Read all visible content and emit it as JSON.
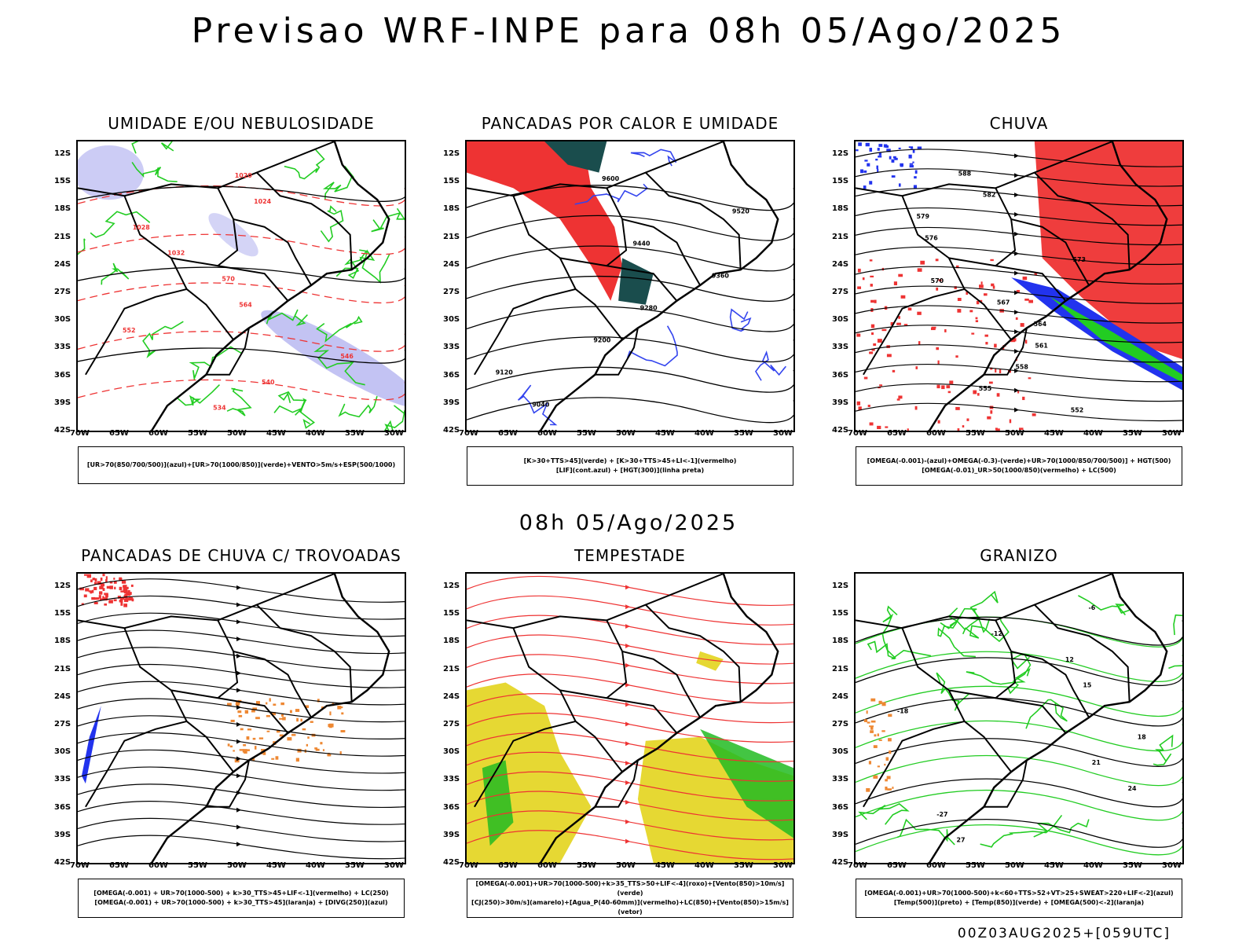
{
  "main_title": "Previsao WRF-INPE  para 08h 05/Ago/2025",
  "mid_title": "08h 05/Ago/2025",
  "footer": "00Z03AUG2025+[059UTC]",
  "axes": {
    "lat_labels": [
      "12S",
      "15S",
      "18S",
      "21S",
      "24S",
      "27S",
      "30S",
      "33S",
      "36S",
      "39S",
      "42S"
    ],
    "lon_labels": [
      "70W",
      "65W",
      "60W",
      "55W",
      "50W",
      "45W",
      "40W",
      "35W",
      "30W"
    ]
  },
  "panels": [
    {
      "title": "UMIDADE E/OU NEBULOSIDADE",
      "legend": [
        "[UR>70(850/700/500)](azul)+[UR>70(1000/850)](verde)+VENTO>5m/s+ESP(500/1000)"
      ],
      "contour_labels": [
        "1020",
        "1024",
        "1028",
        "1032",
        "570",
        "564",
        "552",
        "546",
        "540",
        "534"
      ],
      "overlay_colors": {
        "blue": "#aaaaee",
        "green": "#22cc22",
        "red": "#ee3333"
      }
    },
    {
      "title": "PANCADAS POR CALOR E UMIDADE",
      "legend": [
        "[K>30+TTS>45](verde) + [K>30+TTS>45+LI<-1](vermelho)",
        "[LIF](cont.azul) + [HGT(300)](linha preta)"
      ],
      "contour_labels": [
        "9600",
        "9520",
        "9440",
        "9360",
        "9280",
        "9200",
        "9120",
        "9040"
      ],
      "overlay_colors": {
        "teal": "#1a4d4d",
        "red": "#ee3333",
        "blue": "#3344ee"
      }
    },
    {
      "title": "CHUVA",
      "legend": [
        "[OMEGA(-0.001)-(azul)+OMEGA(-0.3)-(verde)+UR>70(1000/850/700/500)] + HGT(500)",
        "[OMEGA(-0.01)_UR>50(1000/850)(vermelho) + LC(500)"
      ],
      "contour_labels": [
        "588",
        "582",
        "579",
        "576",
        "573",
        "570",
        "567",
        "564",
        "561",
        "558",
        "555",
        "552"
      ],
      "overlay_colors": {
        "red": "#ee3333",
        "blue": "#2233ee",
        "green": "#22cc22"
      }
    },
    {
      "title": "PANCADAS DE CHUVA C/ TROVOADAS",
      "legend": [
        "[OMEGA(-0.001) + UR>70(1000-500) + k>30_TTS>45+LIF<-1](vermelho) + LC(250)",
        "[OMEGA(-0.001) + UR>70(1000-500) + k>30_TTS>45](laranja) + [DIVG(250)](azul)"
      ],
      "contour_labels": [],
      "overlay_colors": {
        "red": "#ee3333",
        "orange": "#ee8833",
        "blue": "#2233ee"
      }
    },
    {
      "title": "TEMPESTADE",
      "legend": [
        "[OMEGA(-0.001)+UR>70(1000-500)+k>35_TTS>50+LIF<-4](roxo)+[Vento(850)>10m/s](verde)",
        "[CJ(250)>30m/s](amarelo)+[Agua_P(40-60mm)](vermelho)+LC(850)+[Vento(850)>15m/s](vetor)"
      ],
      "contour_labels": [],
      "overlay_colors": {
        "yellow": "#e6d833",
        "green": "#22bb22",
        "red": "#ee3333"
      }
    },
    {
      "title": "GRANIZO",
      "legend": [
        "[OMEGA(-0.001)+UR>70(1000-500)+k<60+TTS>52+VT>25+SWEAT>220+LIF<-2](azul)",
        "[Temp(500)](preto) + [Temp(850)](verde) + [OMEGA(500)<-2](laranja)"
      ],
      "contour_labels": [
        "-6",
        "-12",
        "12",
        "15",
        "-18",
        "18",
        "21",
        "24",
        "-27",
        "27"
      ],
      "overlay_colors": {
        "green": "#22cc22",
        "orange": "#ee8833",
        "black": "#000000"
      }
    }
  ]
}
